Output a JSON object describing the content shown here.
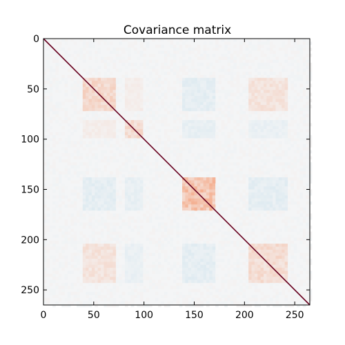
{
  "chart_data": {
    "type": "heatmap",
    "title": "Covariance matrix",
    "xlabel": "",
    "ylabel": "",
    "matrix_size": 265,
    "xlim": [
      0,
      265
    ],
    "ylim": [
      265,
      0
    ],
    "x_ticks": [
      0,
      50,
      100,
      150,
      200,
      250
    ],
    "y_ticks": [
      0,
      50,
      100,
      150,
      200,
      250
    ],
    "x_tick_labels": [
      "0",
      "50",
      "100",
      "150",
      "200",
      "250"
    ],
    "y_tick_labels": [
      "0",
      "50",
      "100",
      "150",
      "200",
      "250"
    ],
    "colormap": "RdBu_r",
    "colors": {
      "background": "#f4f5f6",
      "diagonal": "#67001f",
      "positive": "#f4a582",
      "negative": "#92c5de",
      "frame": "#000000"
    },
    "blocks": [
      {
        "range": [
          40,
          73
        ],
        "level": 0.35,
        "sign": "positive"
      },
      {
        "range": [
          80,
          100
        ],
        "level": 0.3,
        "sign": "positive"
      },
      {
        "range": [
          138,
          172
        ],
        "level": 0.6,
        "sign": "positive"
      },
      {
        "range": [
          205,
          244
        ],
        "level": 0.3,
        "sign": "positive"
      }
    ],
    "cross_blocks": [
      {
        "rows": [
          40,
          73
        ],
        "cols": [
          205,
          244
        ],
        "level": 0.22,
        "sign": "positive"
      },
      {
        "rows": [
          40,
          73
        ],
        "cols": [
          80,
          100
        ],
        "level": 0.1,
        "sign": "positive"
      },
      {
        "rows": [
          40,
          73
        ],
        "cols": [
          138,
          172
        ],
        "level": 0.15,
        "sign": "negative"
      },
      {
        "rows": [
          80,
          100
        ],
        "cols": [
          138,
          172
        ],
        "level": 0.12,
        "sign": "negative"
      },
      {
        "rows": [
          205,
          244
        ],
        "cols": [
          138,
          172
        ],
        "level": 0.15,
        "sign": "negative"
      },
      {
        "rows": [
          80,
          100
        ],
        "cols": [
          205,
          244
        ],
        "level": 0.1,
        "sign": "negative"
      }
    ]
  }
}
